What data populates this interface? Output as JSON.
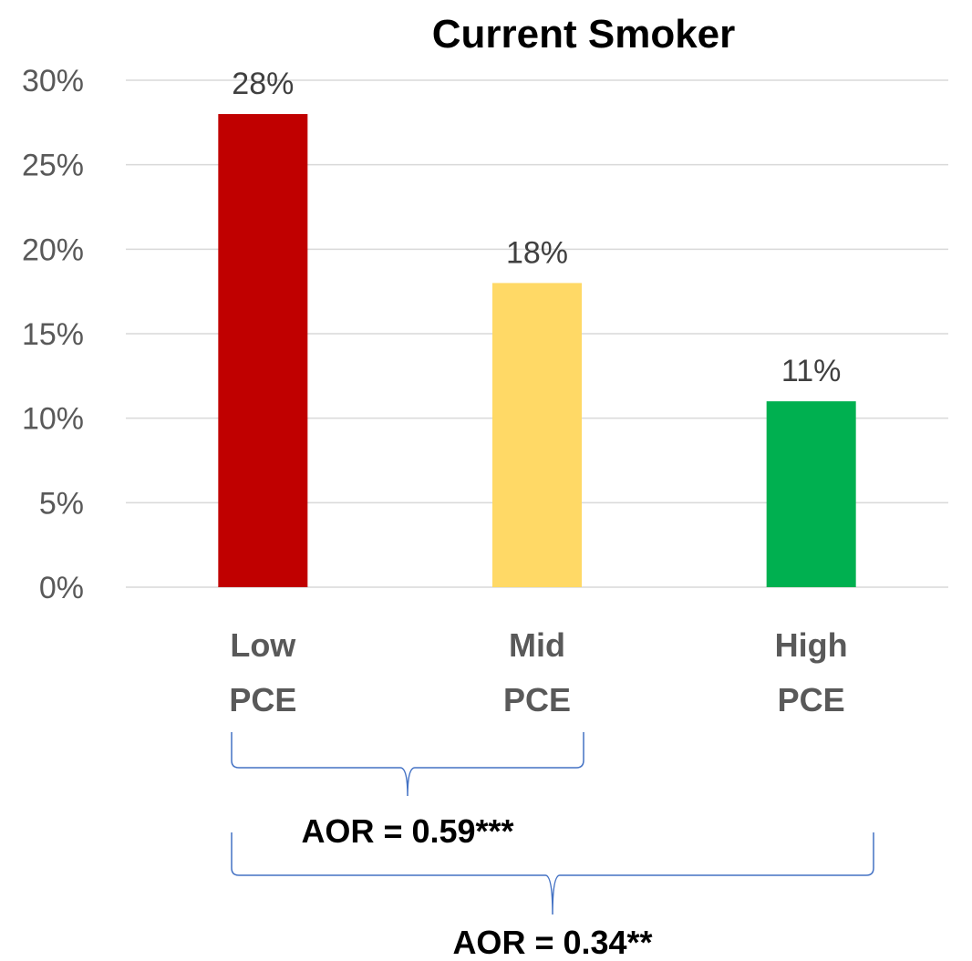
{
  "chart_data": {
    "type": "bar",
    "title": "Current Smoker",
    "categories": [
      [
        "Low",
        "PCE"
      ],
      [
        "Mid",
        "PCE"
      ],
      [
        "High",
        "PCE"
      ]
    ],
    "values": [
      28,
      18,
      11
    ],
    "data_labels": [
      "28%",
      "18%",
      "11%"
    ],
    "colors": [
      "#c00000",
      "#ffd966",
      "#00b050"
    ],
    "ylim": [
      0,
      30
    ],
    "yticks": [
      0,
      5,
      10,
      15,
      20,
      25,
      30
    ],
    "ytick_labels": [
      "0%",
      "5%",
      "10%",
      "15%",
      "20%",
      "25%",
      "30%"
    ],
    "grid": true,
    "legend": "none",
    "annotations": [
      {
        "text": "AOR = 0.59***",
        "from_category": 0,
        "to_category": 1
      },
      {
        "text": "AOR = 0.34**",
        "from_category": 0,
        "to_category": 2
      }
    ]
  }
}
